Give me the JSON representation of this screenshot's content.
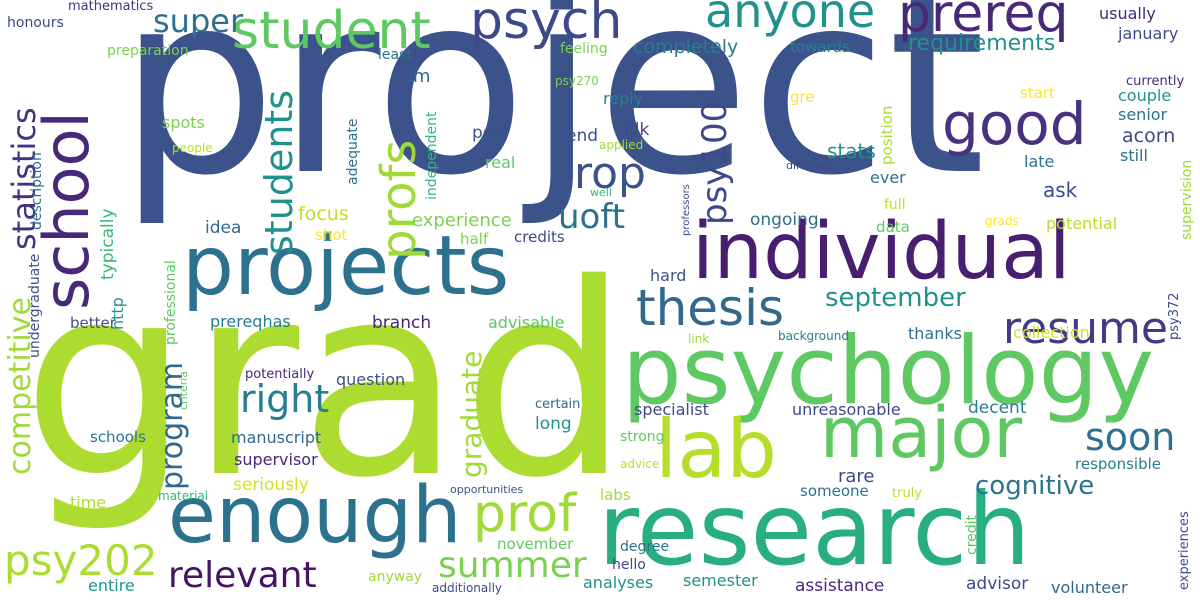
{
  "words": [
    {
      "text": "project"
    },
    {
      "text": "grad"
    },
    {
      "text": "research"
    },
    {
      "text": "psychology"
    },
    {
      "text": "individual"
    },
    {
      "text": "enough"
    },
    {
      "text": "projects"
    },
    {
      "text": "major"
    },
    {
      "text": "school"
    },
    {
      "text": "lab"
    },
    {
      "text": "good"
    },
    {
      "text": "student"
    },
    {
      "text": "psych"
    },
    {
      "text": "prereq"
    },
    {
      "text": "anyone"
    },
    {
      "text": "thesis"
    },
    {
      "text": "resume"
    },
    {
      "text": "prof"
    },
    {
      "text": "profs"
    },
    {
      "text": "students"
    },
    {
      "text": "rop"
    },
    {
      "text": "uoft"
    },
    {
      "text": "psy100"
    },
    {
      "text": "right"
    },
    {
      "text": "relevant"
    },
    {
      "text": "summer"
    },
    {
      "text": "psy202"
    },
    {
      "text": "soon"
    },
    {
      "text": "statistics"
    },
    {
      "text": "competitive"
    },
    {
      "text": "program"
    },
    {
      "text": "graduate"
    },
    {
      "text": "september"
    },
    {
      "text": "cognitive"
    },
    {
      "text": "super"
    },
    {
      "text": "requirements"
    },
    {
      "text": "completely"
    },
    {
      "text": "usually"
    },
    {
      "text": "january"
    },
    {
      "text": "currently"
    },
    {
      "text": "couple"
    },
    {
      "text": "senior"
    },
    {
      "text": "acorn"
    },
    {
      "text": "still"
    },
    {
      "text": "ask"
    },
    {
      "text": "potential"
    },
    {
      "text": "stats"
    },
    {
      "text": "ever"
    },
    {
      "text": "full"
    },
    {
      "text": "late"
    },
    {
      "text": "start"
    },
    {
      "text": "honours"
    },
    {
      "text": "mathematics"
    },
    {
      "text": "preparation"
    },
    {
      "text": "least"
    },
    {
      "text": "feeling"
    },
    {
      "text": "towards"
    },
    {
      "text": "im"
    },
    {
      "text": "reply"
    },
    {
      "text": "psy270"
    },
    {
      "text": "pool"
    },
    {
      "text": "end"
    },
    {
      "text": "idk"
    },
    {
      "text": "real"
    },
    {
      "text": "applied"
    },
    {
      "text": "well"
    },
    {
      "text": "different"
    },
    {
      "text": "professors"
    },
    {
      "text": "position"
    },
    {
      "text": "gre"
    },
    {
      "text": "focus"
    },
    {
      "text": "experience"
    },
    {
      "text": "ongoing"
    },
    {
      "text": "idea"
    },
    {
      "text": "shot"
    },
    {
      "text": "half"
    },
    {
      "text": "credits"
    },
    {
      "text": "data"
    },
    {
      "text": "grads"
    },
    {
      "text": "hard"
    },
    {
      "text": "branch"
    },
    {
      "text": "advisable"
    },
    {
      "text": "prereqhas"
    },
    {
      "text": "http"
    },
    {
      "text": "typically"
    },
    {
      "text": "spots"
    },
    {
      "text": "people"
    },
    {
      "text": "description"
    },
    {
      "text": "independent"
    },
    {
      "text": "adequate"
    },
    {
      "text": "undergraduate"
    },
    {
      "text": "professional"
    },
    {
      "text": "better"
    },
    {
      "text": "collection"
    },
    {
      "text": "thanks"
    },
    {
      "text": "background"
    },
    {
      "text": "link"
    },
    {
      "text": "potentially"
    },
    {
      "text": "criteria"
    },
    {
      "text": "question"
    },
    {
      "text": "certain"
    },
    {
      "text": "specialist"
    },
    {
      "text": "unreasonable"
    },
    {
      "text": "decent"
    },
    {
      "text": "manuscript"
    },
    {
      "text": "long"
    },
    {
      "text": "strong"
    },
    {
      "text": "schools"
    },
    {
      "text": "supervisor"
    },
    {
      "text": "seriously"
    },
    {
      "text": "advice"
    },
    {
      "text": "rare"
    },
    {
      "text": "someone"
    },
    {
      "text": "truly"
    },
    {
      "text": "credit"
    },
    {
      "text": "responsible"
    },
    {
      "text": "supervision"
    },
    {
      "text": "psy372"
    },
    {
      "text": "experiences"
    },
    {
      "text": "time"
    },
    {
      "text": "material"
    },
    {
      "text": "opportunities"
    },
    {
      "text": "labs"
    },
    {
      "text": "november"
    },
    {
      "text": "degree"
    },
    {
      "text": "hello"
    },
    {
      "text": "entire"
    },
    {
      "text": "anyway"
    },
    {
      "text": "additionally"
    },
    {
      "text": "analyses"
    },
    {
      "text": "semester"
    },
    {
      "text": "assistance"
    },
    {
      "text": "advisor"
    },
    {
      "text": "volunteer"
    }
  ]
}
